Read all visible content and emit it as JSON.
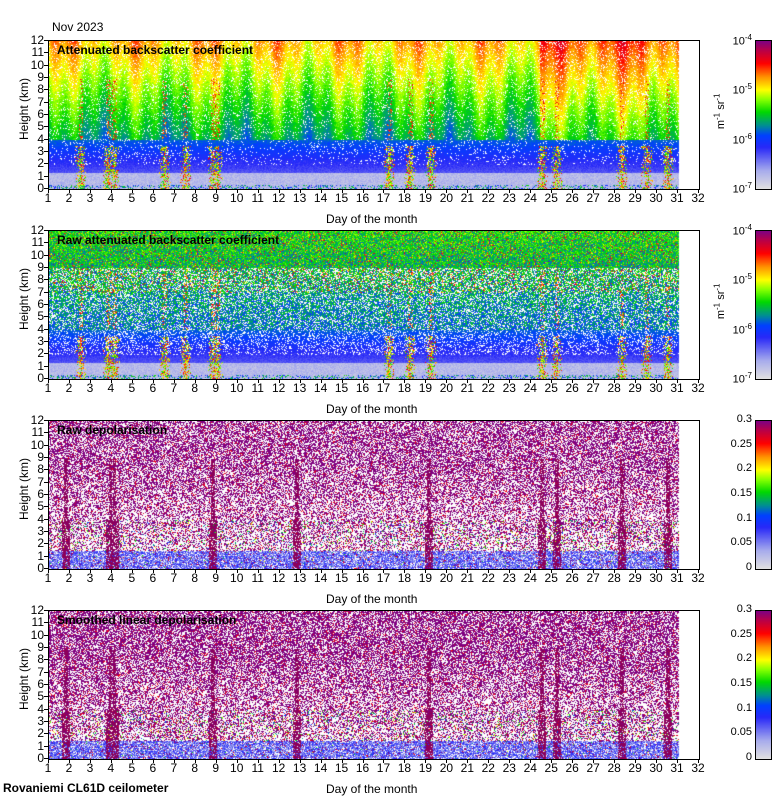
{
  "header": {
    "month": "Nov 2023"
  },
  "footer": {
    "station": "Rovaniemi CL61D ceilometer"
  },
  "chart_data": [
    {
      "type": "heatmap",
      "title": "Attenuated backscatter coefficient",
      "xlabel": "Day of the month",
      "ylabel": "Height (km)",
      "xlim": [
        1,
        32
      ],
      "ylim": [
        0,
        12
      ],
      "xticks": [
        1,
        2,
        3,
        4,
        5,
        6,
        7,
        8,
        9,
        10,
        11,
        12,
        13,
        14,
        15,
        16,
        17,
        18,
        19,
        20,
        21,
        22,
        23,
        24,
        25,
        26,
        27,
        28,
        29,
        30,
        31,
        32
      ],
      "yticks": [
        0,
        1,
        2,
        3,
        4,
        5,
        6,
        7,
        8,
        9,
        10,
        11,
        12
      ],
      "data_end_day": 31,
      "variable": "backscatter",
      "colorbar": {
        "scale": "log",
        "range": [
          1e-07,
          0.0001
        ],
        "ticks": [
          {
            "base": "10",
            "exp": "-7"
          },
          {
            "base": "10",
            "exp": "-6"
          },
          {
            "base": "10",
            "exp": "-5"
          },
          {
            "base": "10",
            "exp": "-4"
          }
        ],
        "unit": {
          "a": "m",
          "ae": "-1",
          "b": "sr",
          "be": "-1"
        }
      },
      "cloud_events_days": [
        2.5,
        3.8,
        4.1,
        6.5,
        7.5,
        8.8,
        9.0,
        17.2,
        18.2,
        19.2,
        24.5,
        25.2,
        28.3,
        29.5,
        30.5
      ]
    },
    {
      "type": "heatmap",
      "title": "Raw attenuated backscatter coefficient",
      "xlabel": "Day of the month",
      "ylabel": "Height (km)",
      "xlim": [
        1,
        32
      ],
      "ylim": [
        0,
        12
      ],
      "xticks": [
        1,
        2,
        3,
        4,
        5,
        6,
        7,
        8,
        9,
        10,
        11,
        12,
        13,
        14,
        15,
        16,
        17,
        18,
        19,
        20,
        21,
        22,
        23,
        24,
        25,
        26,
        27,
        28,
        29,
        30,
        31,
        32
      ],
      "yticks": [
        0,
        1,
        2,
        3,
        4,
        5,
        6,
        7,
        8,
        9,
        10,
        11,
        12
      ],
      "data_end_day": 31,
      "variable": "raw_backscatter",
      "colorbar": {
        "scale": "log",
        "range": [
          1e-07,
          0.0001
        ],
        "ticks": [
          {
            "base": "10",
            "exp": "-7"
          },
          {
            "base": "10",
            "exp": "-6"
          },
          {
            "base": "10",
            "exp": "-5"
          },
          {
            "base": "10",
            "exp": "-4"
          }
        ],
        "unit": {
          "a": "m",
          "ae": "-1",
          "b": "sr",
          "be": "-1"
        }
      },
      "cloud_events_days": [
        2.5,
        3.8,
        4.1,
        6.5,
        7.5,
        8.8,
        9.0,
        17.2,
        18.2,
        19.2,
        24.5,
        25.2,
        28.3,
        29.5,
        30.5
      ]
    },
    {
      "type": "heatmap",
      "title": "Raw depolarisation",
      "xlabel": "Day of the month",
      "ylabel": "Height (km)",
      "xlim": [
        1,
        32
      ],
      "ylim": [
        0,
        12
      ],
      "xticks": [
        1,
        2,
        3,
        4,
        5,
        6,
        7,
        8,
        9,
        10,
        11,
        12,
        13,
        14,
        15,
        16,
        17,
        18,
        19,
        20,
        21,
        22,
        23,
        24,
        25,
        26,
        27,
        28,
        29,
        30,
        31,
        32
      ],
      "yticks": [
        0,
        1,
        2,
        3,
        4,
        5,
        6,
        7,
        8,
        9,
        10,
        11,
        12
      ],
      "data_end_day": 31,
      "variable": "depol",
      "colorbar": {
        "scale": "linear",
        "range": [
          0,
          0.3
        ],
        "ticks": [
          {
            "base": "0"
          },
          {
            "base": "0.05"
          },
          {
            "base": "0.1"
          },
          {
            "base": "0.15"
          },
          {
            "base": "0.2"
          },
          {
            "base": "0.25"
          },
          {
            "base": "0.3"
          }
        ]
      },
      "cloud_events_days": [
        1.8,
        3.9,
        4.1,
        8.8,
        12.8,
        19.1,
        24.5,
        25.2,
        28.3,
        30.5
      ]
    },
    {
      "type": "heatmap",
      "title": "Smoothed linear depolarisation",
      "xlabel": "Day of the month",
      "ylabel": "Height (km)",
      "xlim": [
        1,
        32
      ],
      "ylim": [
        0,
        12
      ],
      "xticks": [
        1,
        2,
        3,
        4,
        5,
        6,
        7,
        8,
        9,
        10,
        11,
        12,
        13,
        14,
        15,
        16,
        17,
        18,
        19,
        20,
        21,
        22,
        23,
        24,
        25,
        26,
        27,
        28,
        29,
        30,
        31,
        32
      ],
      "yticks": [
        0,
        1,
        2,
        3,
        4,
        5,
        6,
        7,
        8,
        9,
        10,
        11,
        12
      ],
      "data_end_day": 31,
      "variable": "depol_smooth",
      "colorbar": {
        "scale": "linear",
        "range": [
          0,
          0.3
        ],
        "ticks": [
          {
            "base": "0"
          },
          {
            "base": "0.05"
          },
          {
            "base": "0.1"
          },
          {
            "base": "0.15"
          },
          {
            "base": "0.2"
          },
          {
            "base": "0.25"
          },
          {
            "base": "0.3"
          }
        ]
      },
      "cloud_events_days": [
        1.8,
        3.9,
        4.1,
        8.8,
        12.8,
        19.1,
        24.5,
        25.2,
        28.3,
        30.5
      ]
    }
  ]
}
